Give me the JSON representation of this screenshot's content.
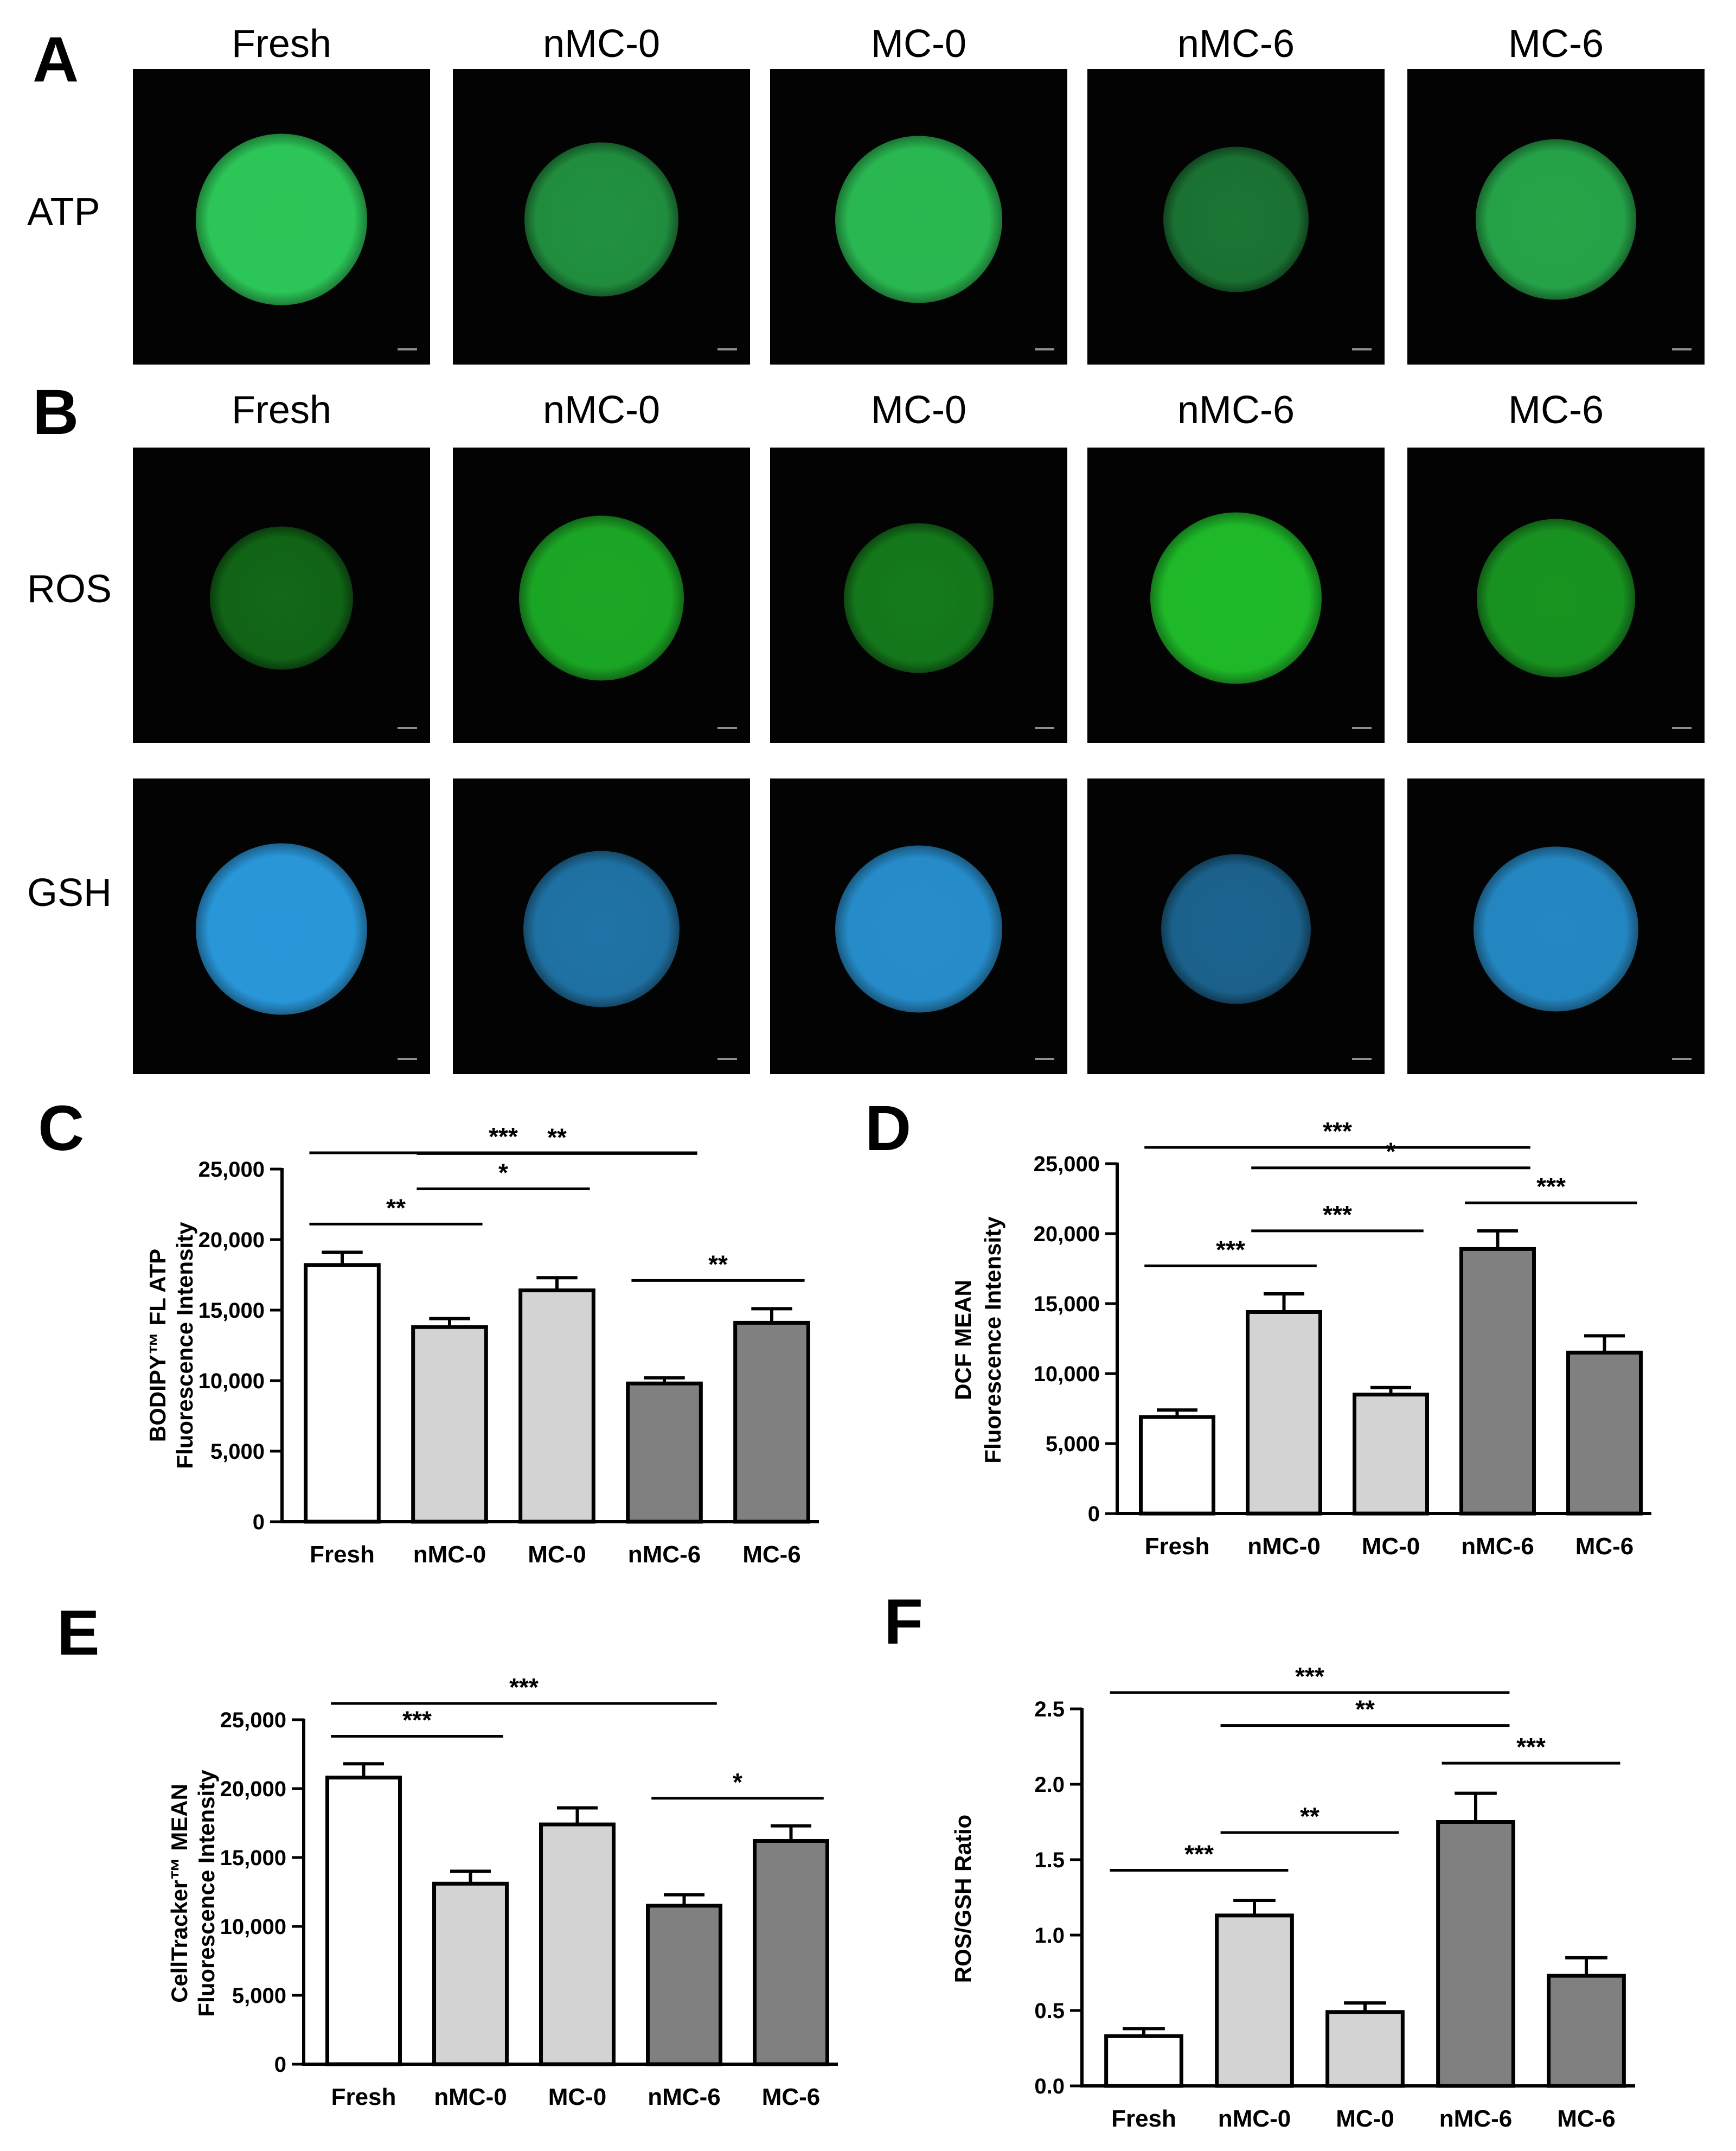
{
  "panels": {
    "A": {
      "letter": "A",
      "columns": [
        "Fresh",
        "nMC-0",
        "MC-0",
        "nMC-6",
        "MC-6"
      ],
      "rows": [
        {
          "label": "ATP",
          "color": "#2ecc5a",
          "intensity": [
            0.95,
            0.55,
            0.85,
            0.35,
            0.7
          ]
        }
      ]
    },
    "B": {
      "letter": "B",
      "columns": [
        "Fresh",
        "nMC-0",
        "MC-0",
        "nMC-6",
        "MC-6"
      ],
      "rows": [
        {
          "label": "ROS",
          "color": "#1fbf2a",
          "intensity": [
            0.3,
            0.8,
            0.45,
            0.95,
            0.65
          ]
        },
        {
          "label": "GSH",
          "color": "#2a9be0",
          "intensity": [
            0.95,
            0.6,
            0.85,
            0.45,
            0.8
          ]
        }
      ]
    }
  },
  "chart_data": [
    {
      "letter": "C",
      "type": "bar",
      "categories": [
        "Fresh",
        "nMC-0",
        "MC-0",
        "nMC-6",
        "MC-6"
      ],
      "values": [
        18200,
        13800,
        16400,
        9800,
        14100
      ],
      "errors": [
        900,
        600,
        900,
        400,
        1000
      ],
      "fills": [
        "#ffffff",
        "#d3d3d3",
        "#d3d3d3",
        "#808080",
        "#808080"
      ],
      "ylabel": [
        "BODIPY™ FL ATP",
        "Fluorescence Intensity"
      ],
      "ylim": [
        0,
        25000
      ],
      "ticks": [
        0,
        5000,
        10000,
        15000,
        20000,
        25000
      ],
      "tick_labels": [
        "0",
        "5,000",
        "10,000",
        "15,000",
        "20,000",
        "25,000"
      ],
      "comparisons": [
        {
          "from": 0,
          "to": 3,
          "label": "***"
        },
        {
          "from": 0,
          "to": 1,
          "label": "**"
        },
        {
          "from": 1,
          "to": 3,
          "label": "**"
        },
        {
          "from": 1,
          "to": 2,
          "label": "*"
        },
        {
          "from": 3,
          "to": 4,
          "label": "**"
        }
      ]
    },
    {
      "letter": "D",
      "type": "bar",
      "categories": [
        "Fresh",
        "nMC-0",
        "MC-0",
        "nMC-6",
        "MC-6"
      ],
      "values": [
        6900,
        14400,
        8500,
        18900,
        11500
      ],
      "errors": [
        500,
        1300,
        500,
        1300,
        1200
      ],
      "fills": [
        "#ffffff",
        "#d3d3d3",
        "#d3d3d3",
        "#808080",
        "#808080"
      ],
      "ylabel": [
        "DCF MEAN",
        "Fluorescence Intensity"
      ],
      "ylim": [
        0,
        25000
      ],
      "ticks": [
        0,
        5000,
        10000,
        15000,
        20000,
        25000
      ],
      "tick_labels": [
        "0",
        "5,000",
        "10,000",
        "15,000",
        "20,000",
        "25,000"
      ],
      "comparisons": [
        {
          "from": 0,
          "to": 3,
          "label": "***"
        },
        {
          "from": 1,
          "to": 3,
          "label": "*"
        },
        {
          "from": 3,
          "to": 4,
          "label": "***"
        },
        {
          "from": 0,
          "to": 1,
          "label": "***"
        },
        {
          "from": 1,
          "to": 2,
          "label": "***"
        }
      ]
    },
    {
      "letter": "E",
      "type": "bar",
      "categories": [
        "Fresh",
        "nMC-0",
        "MC-0",
        "nMC-6",
        "MC-6"
      ],
      "values": [
        20800,
        13100,
        17400,
        11500,
        16200
      ],
      "errors": [
        1000,
        900,
        1200,
        800,
        1100
      ],
      "fills": [
        "#ffffff",
        "#d3d3d3",
        "#d3d3d3",
        "#808080",
        "#808080"
      ],
      "ylabel": [
        "CellTracker™ MEAN",
        "Fluorescence Intensity"
      ],
      "ylim": [
        0,
        25000
      ],
      "ticks": [
        0,
        5000,
        10000,
        15000,
        20000,
        25000
      ],
      "tick_labels": [
        "0",
        "5,000",
        "10,000",
        "15,000",
        "20,000",
        "25,000"
      ],
      "comparisons": [
        {
          "from": 0,
          "to": 3,
          "label": "***"
        },
        {
          "from": 0,
          "to": 1,
          "label": "***"
        },
        {
          "from": 1,
          "to": 2,
          "label": "*"
        },
        {
          "from": 3,
          "to": 4,
          "label": "*"
        }
      ]
    },
    {
      "letter": "F",
      "type": "bar",
      "categories": [
        "Fresh",
        "nMC-0",
        "MC-0",
        "nMC-6",
        "MC-6"
      ],
      "values": [
        0.33,
        1.13,
        0.49,
        1.75,
        0.73
      ],
      "errors": [
        0.05,
        0.1,
        0.06,
        0.19,
        0.12
      ],
      "fills": [
        "#ffffff",
        "#d3d3d3",
        "#d3d3d3",
        "#808080",
        "#808080"
      ],
      "ylabel": [
        "ROS/GSH Ratio"
      ],
      "ylim": [
        0,
        2.5
      ],
      "ticks": [
        0,
        0.5,
        1.0,
        1.5,
        2.0,
        2.5
      ],
      "tick_labels": [
        "0.0",
        "0.5",
        "1.0",
        "1.5",
        "2.0",
        "2.5"
      ],
      "comparisons": [
        {
          "from": 0,
          "to": 3,
          "label": "***"
        },
        {
          "from": 1,
          "to": 3,
          "label": "**"
        },
        {
          "from": 3,
          "to": 4,
          "label": "***"
        },
        {
          "from": 0,
          "to": 1,
          "label": "***"
        },
        {
          "from": 1,
          "to": 2,
          "label": "**"
        }
      ]
    }
  ]
}
